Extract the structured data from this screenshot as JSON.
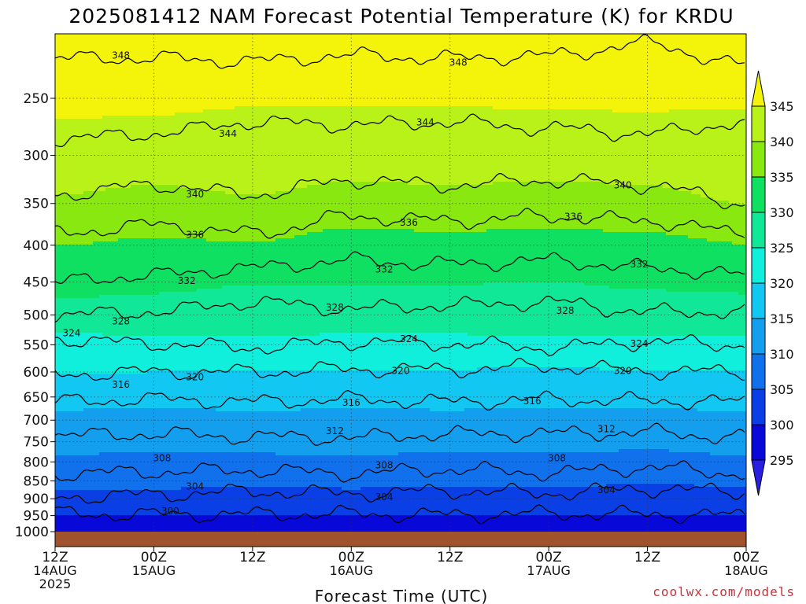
{
  "chart_data": {
    "type": "heatmap",
    "title": "2025081412 NAM Forecast Potential Temperature (K) for KRDU",
    "xlabel": "Forecast Time (UTC)",
    "ylabel": "",
    "y_scale": "log",
    "y_reversed": true,
    "y_ticks": [
      "250",
      "300",
      "350",
      "400",
      "450",
      "500",
      "550",
      "600",
      "650",
      "700",
      "750",
      "800",
      "850",
      "900",
      "950",
      "1000"
    ],
    "y_range": [
      1000,
      200
    ],
    "x_ticks": [
      {
        "line1": "12Z",
        "line2": "14AUG",
        "line3": "2025"
      },
      {
        "line1": "00Z",
        "line2": "15AUG",
        "line3": ""
      },
      {
        "line1": "12Z",
        "line2": "",
        "line3": ""
      },
      {
        "line1": "00Z",
        "line2": "16AUG",
        "line3": ""
      },
      {
        "line1": "12Z",
        "line2": "",
        "line3": ""
      },
      {
        "line1": "00Z",
        "line2": "17AUG",
        "line3": ""
      },
      {
        "line1": "12Z",
        "line2": "",
        "line3": ""
      },
      {
        "line1": "00Z",
        "line2": "18AUG",
        "line3": ""
      }
    ],
    "x_hours": [
      0,
      84
    ],
    "grid": true,
    "colorbar": {
      "levels": [
        295,
        300,
        305,
        310,
        315,
        320,
        325,
        330,
        335,
        340,
        345
      ],
      "labels": [
        "295",
        "300",
        "305",
        "310",
        "315",
        "320",
        "325",
        "330",
        "335",
        "340",
        "345"
      ],
      "colors": [
        "#2a1fe0",
        "#0808d8",
        "#0a3fe6",
        "#1171ec",
        "#149fee",
        "#12c8f2",
        "#10eedc",
        "#10e898",
        "#10e062",
        "#88e810",
        "#b8f218",
        "#f4f40a"
      ]
    },
    "contours": [
      {
        "theta": 300,
        "pressures": [
          945,
          947,
          946,
          945,
          948,
          944,
          946,
          950
        ]
      },
      {
        "theta": 304,
        "pressures": [
          895,
          888,
          880,
          885,
          878,
          884,
          872,
          880
        ]
      },
      {
        "theta": 308,
        "pressures": [
          830,
          826,
          822,
          830,
          820,
          828,
          815,
          830
        ]
      },
      {
        "theta": 312,
        "pressures": [
          735,
          732,
          738,
          740,
          732,
          730,
          728,
          740
        ]
      },
      {
        "theta": 316,
        "pressures": [
          660,
          655,
          660,
          655,
          660,
          655,
          658,
          660
        ]
      },
      {
        "theta": 320,
        "pressures": [
          605,
          600,
          600,
          595,
          595,
          590,
          598,
          600
        ]
      },
      {
        "theta": 324,
        "pressures": [
          540,
          548,
          555,
          545,
          548,
          555,
          545,
          550
        ]
      },
      {
        "theta": 328,
        "pressures": [
          500,
          495,
          480,
          490,
          485,
          480,
          495,
          495
        ]
      },
      {
        "theta": 332,
        "pressures": [
          450,
          440,
          430,
          420,
          425,
          420,
          430,
          440
        ]
      },
      {
        "theta": 336,
        "pressures": [
          385,
          375,
          385,
          365,
          370,
          365,
          370,
          385
        ]
      },
      {
        "theta": 340,
        "pressures": [
          340,
          330,
          340,
          325,
          330,
          325,
          330,
          350
        ]
      },
      {
        "theta": 344,
        "pressures": [
          285,
          280,
          270,
          272,
          270,
          275,
          280,
          270
        ]
      },
      {
        "theta": 348,
        "pressures": [
          220,
          220,
          222,
          218,
          220,
          218,
          210,
          225
        ]
      }
    ],
    "contour_labels": [
      {
        "text": "348",
        "hour": 8,
        "pressure": 218
      },
      {
        "text": "348",
        "hour": 49,
        "pressure": 223
      },
      {
        "text": "344",
        "hour": 21,
        "pressure": 280
      },
      {
        "text": "344",
        "hour": 45,
        "pressure": 270
      },
      {
        "text": "340",
        "hour": 17,
        "pressure": 340
      },
      {
        "text": "340",
        "hour": 69,
        "pressure": 330
      },
      {
        "text": "336",
        "hour": 17,
        "pressure": 387
      },
      {
        "text": "336",
        "hour": 43,
        "pressure": 372
      },
      {
        "text": "336",
        "hour": 63,
        "pressure": 365
      },
      {
        "text": "332",
        "hour": 16,
        "pressure": 448
      },
      {
        "text": "332",
        "hour": 40,
        "pressure": 432
      },
      {
        "text": "332",
        "hour": 71,
        "pressure": 425
      },
      {
        "text": "328",
        "hour": 8,
        "pressure": 510
      },
      {
        "text": "328",
        "hour": 34,
        "pressure": 488
      },
      {
        "text": "328",
        "hour": 62,
        "pressure": 493
      },
      {
        "text": "324",
        "hour": 2,
        "pressure": 530
      },
      {
        "text": "324",
        "hour": 43,
        "pressure": 540
      },
      {
        "text": "324",
        "hour": 71,
        "pressure": 548
      },
      {
        "text": "320",
        "hour": 17,
        "pressure": 610
      },
      {
        "text": "320",
        "hour": 42,
        "pressure": 598
      },
      {
        "text": "320",
        "hour": 69,
        "pressure": 598
      },
      {
        "text": "316",
        "hour": 8,
        "pressure": 625
      },
      {
        "text": "316",
        "hour": 36,
        "pressure": 662
      },
      {
        "text": "316",
        "hour": 58,
        "pressure": 659
      },
      {
        "text": "312",
        "hour": 34,
        "pressure": 725
      },
      {
        "text": "312",
        "hour": 67,
        "pressure": 720
      },
      {
        "text": "308",
        "hour": 13,
        "pressure": 790
      },
      {
        "text": "308",
        "hour": 40,
        "pressure": 808
      },
      {
        "text": "308",
        "hour": 61,
        "pressure": 790
      },
      {
        "text": "304",
        "hour": 17,
        "pressure": 865
      },
      {
        "text": "304",
        "hour": 40,
        "pressure": 895
      },
      {
        "text": "304",
        "hour": 67,
        "pressure": 875
      },
      {
        "text": "300",
        "hour": 14,
        "pressure": 937
      }
    ]
  },
  "credit": "coolwx.com/models"
}
